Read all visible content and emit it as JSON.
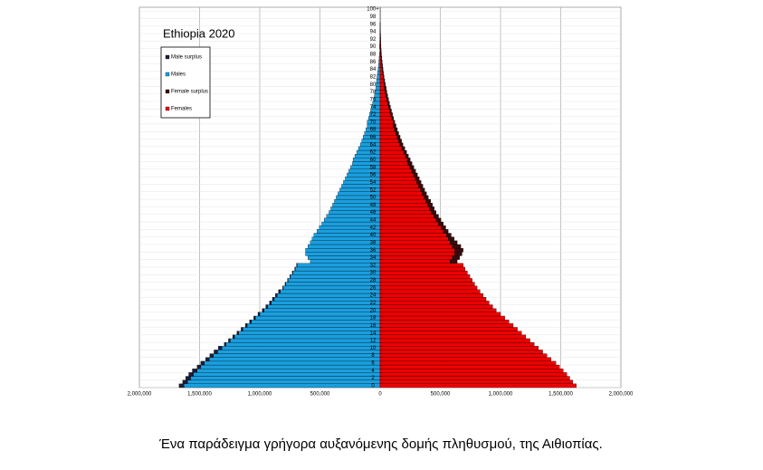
{
  "chart_data": {
    "type": "bar",
    "title": "Ethiopia 2020",
    "categories": [
      "0",
      null,
      "2",
      null,
      "4",
      null,
      "6",
      null,
      "8",
      null,
      "10",
      null,
      "12",
      null,
      "14",
      null,
      "16",
      null,
      "18",
      null,
      "20",
      null,
      "22",
      null,
      "24",
      null,
      "26",
      null,
      "28",
      null,
      "30",
      null,
      "32",
      null,
      "34",
      null,
      "36",
      null,
      "38",
      null,
      "40",
      null,
      "42",
      null,
      "44",
      null,
      "46",
      null,
      "48",
      null,
      "50",
      null,
      "52",
      null,
      "54",
      null,
      "56",
      null,
      "58",
      null,
      "60",
      null,
      "62",
      null,
      "64",
      null,
      "66",
      null,
      "68",
      null,
      "70",
      null,
      "72",
      null,
      "74",
      null,
      "76",
      null,
      "78",
      null,
      "80",
      null,
      "82",
      null,
      "84",
      null,
      "86",
      null,
      "88",
      null,
      "90",
      null,
      "92",
      null,
      "94",
      null,
      "96",
      null,
      "98",
      null,
      "100+"
    ],
    "series": [
      {
        "name": "Male surplus",
        "color": "#1a1f3a",
        "values": [
          -40000,
          -40000,
          -40000,
          -40000,
          -40000,
          -30000,
          -30000,
          -30000,
          -30000,
          -30000,
          -30000,
          -15000,
          -15000,
          -15000,
          -15000,
          -15000,
          -15000,
          -15000,
          -15000,
          -15000,
          -15000,
          -15000,
          -15000,
          -15000,
          -15000,
          -15000,
          -5000,
          -5000,
          -5000,
          -5000,
          -5000,
          -5000,
          -5000,
          0,
          0,
          0,
          0,
          0,
          0,
          0,
          0,
          0,
          0,
          0,
          0,
          0,
          0,
          0,
          0,
          0,
          0,
          0,
          0,
          0,
          0,
          0,
          0,
          0,
          0,
          0,
          0,
          0,
          0,
          0,
          0,
          0,
          0,
          0,
          0,
          0,
          0,
          0,
          0,
          0,
          0,
          0,
          0,
          0,
          0,
          0,
          0,
          0,
          0,
          0,
          0,
          0,
          0,
          0,
          0,
          0,
          0,
          0,
          0,
          0,
          0,
          0,
          0,
          0,
          0,
          0,
          0
        ]
      },
      {
        "name": "Males",
        "color": "#1a9fdf",
        "values": [
          -1630000,
          -1600000,
          -1575000,
          -1550000,
          -1520000,
          -1490000,
          -1460000,
          -1420000,
          -1385000,
          -1350000,
          -1315000,
          -1280000,
          -1245000,
          -1210000,
          -1175000,
          -1140000,
          -1105000,
          -1070000,
          -1035000,
          -1000000,
          -965000,
          -935000,
          -905000,
          -880000,
          -855000,
          -830000,
          -805000,
          -785000,
          -765000,
          -745000,
          -725000,
          -705000,
          -690000,
          -580000,
          -600000,
          -620000,
          -620000,
          -600000,
          -580000,
          -565000,
          -550000,
          -525000,
          -505000,
          -485000,
          -465000,
          -445000,
          -425000,
          -410000,
          -395000,
          -380000,
          -365000,
          -350000,
          -335000,
          -320000,
          -305000,
          -290000,
          -275000,
          -260000,
          -245000,
          -230000,
          -225000,
          -210000,
          -195000,
          -180000,
          -165000,
          -153000,
          -141000,
          -129000,
          -118000,
          -107000,
          -107000,
          -97000,
          -88000,
          -79000,
          -71000,
          -63000,
          -55000,
          -48000,
          -41000,
          -35000,
          -34000,
          -30000,
          -26000,
          -22000,
          -18000,
          -14000,
          -11000,
          -8000,
          -5000,
          -3000,
          -5000,
          -4000,
          -3000,
          -3000,
          -2000,
          -1000,
          -1000,
          0,
          0,
          0,
          0
        ]
      },
      {
        "name": "Female surplus",
        "color": "#3a0a0a",
        "values": [
          0,
          0,
          0,
          0,
          0,
          0,
          0,
          0,
          0,
          0,
          0,
          0,
          0,
          0,
          0,
          0,
          0,
          0,
          0,
          0,
          0,
          0,
          0,
          0,
          0,
          0,
          0,
          0,
          0,
          0,
          0,
          0,
          0,
          60000,
          60000,
          60000,
          70000,
          70000,
          60000,
          50000,
          40000,
          40000,
          40000,
          40000,
          40000,
          40000,
          40000,
          40000,
          40000,
          40000,
          35000,
          35000,
          35000,
          35000,
          35000,
          35000,
          35000,
          35000,
          35000,
          35000,
          25000,
          25000,
          25000,
          25000,
          25000,
          25000,
          25000,
          25000,
          25000,
          25000,
          15000,
          15000,
          15000,
          15000,
          15000,
          15000,
          15000,
          15000,
          15000,
          15000,
          10000,
          8000,
          7000,
          6000,
          6000,
          6000,
          6000,
          6000,
          6000,
          6000,
          2000,
          2000,
          2000,
          1000,
          1000,
          1000,
          1000,
          1000,
          1000,
          1000,
          1000
        ]
      },
      {
        "name": "Females",
        "color": "#ee0000",
        "values": [
          1630000,
          1600000,
          1575000,
          1550000,
          1520000,
          1490000,
          1460000,
          1420000,
          1385000,
          1350000,
          1315000,
          1280000,
          1245000,
          1210000,
          1175000,
          1140000,
          1105000,
          1070000,
          1035000,
          1000000,
          965000,
          935000,
          905000,
          880000,
          855000,
          830000,
          805000,
          785000,
          765000,
          745000,
          725000,
          705000,
          690000,
          580000,
          600000,
          620000,
          620000,
          600000,
          580000,
          565000,
          550000,
          525000,
          505000,
          485000,
          465000,
          445000,
          425000,
          410000,
          395000,
          380000,
          365000,
          350000,
          335000,
          320000,
          305000,
          290000,
          275000,
          260000,
          245000,
          230000,
          225000,
          210000,
          195000,
          180000,
          165000,
          153000,
          141000,
          129000,
          118000,
          107000,
          107000,
          97000,
          88000,
          79000,
          71000,
          63000,
          55000,
          48000,
          41000,
          35000,
          34000,
          30000,
          26000,
          22000,
          18000,
          14000,
          11000,
          8000,
          5000,
          3000,
          5000,
          4000,
          3000,
          3000,
          2000,
          1000,
          1000,
          0,
          0,
          0,
          0
        ]
      }
    ],
    "xlim": [
      -2000000,
      2000000
    ],
    "xticks": [
      {
        "value": -2000000,
        "label": "2,000,000"
      },
      {
        "value": -1500000,
        "label": "1,500,000"
      },
      {
        "value": -1000000,
        "label": "1,000,000"
      },
      {
        "value": -500000,
        "label": "500,000"
      },
      0,
      {
        "value": 500000,
        "label": "500,000"
      },
      {
        "value": 1000000,
        "label": "1,000,000"
      },
      {
        "value": 1500000,
        "label": "1,500,000"
      },
      {
        "value": 2000000,
        "label": "2,000,000"
      }
    ],
    "grid": true
  },
  "caption": "Ένα παράδειγμα γρήγορα αυξανόμενης δομής πληθυσμού, της Αιθιοπίας."
}
